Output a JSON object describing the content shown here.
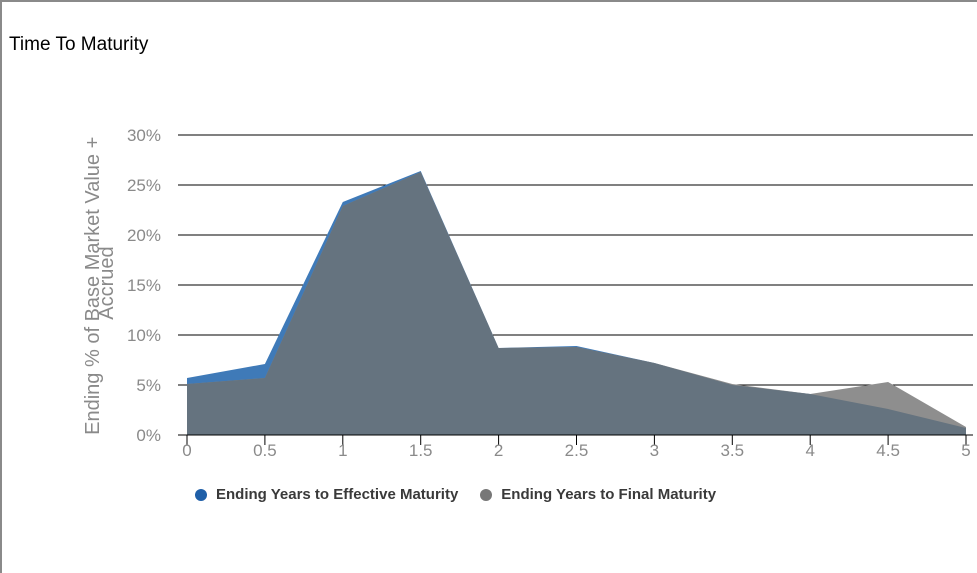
{
  "chart_data": {
    "type": "area",
    "title": "Time To Maturity",
    "xlabel": "",
    "ylabel": "Ending % of Base Market Value + Accrued",
    "ylabel_lines": [
      "Ending % of Base Market Value +",
      "Accrued"
    ],
    "x": [
      0,
      0.5,
      1,
      1.5,
      2,
      2.5,
      3,
      3.5,
      4,
      4.5,
      5
    ],
    "x_tick_labels": [
      "0",
      "0.5",
      "1",
      "1.5",
      "2",
      "2.5",
      "3",
      "3.5",
      "4",
      "4.5",
      "5"
    ],
    "xlim": [
      0,
      5
    ],
    "ylim": [
      0,
      30
    ],
    "y_ticks": [
      0,
      5,
      10,
      15,
      20,
      25,
      30
    ],
    "y_tick_labels": [
      "0%",
      "5%",
      "10%",
      "15%",
      "20%",
      "25%",
      "30%"
    ],
    "grid": true,
    "legend_position": "bottom",
    "series": [
      {
        "name": "Ending Years to Effective Maturity",
        "color": "#1f5fa8",
        "fill": "#3f7ab8",
        "values": [
          5.7,
          7.1,
          23.3,
          26.4,
          8.7,
          8.9,
          7.2,
          5.0,
          4.1,
          2.6,
          0.7
        ]
      },
      {
        "name": "Ending Years to Final Maturity",
        "color": "#777777",
        "fill": "#8e8e8e",
        "values": [
          5.1,
          5.7,
          22.9,
          26.3,
          8.7,
          8.8,
          7.2,
          5.1,
          4.1,
          5.3,
          0.8
        ]
      }
    ],
    "overlap_fill": "#65737f"
  }
}
